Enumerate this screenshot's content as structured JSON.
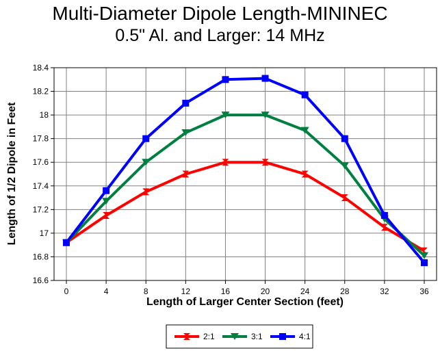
{
  "chart_data": {
    "type": "line",
    "title": "Multi-Diameter Dipole Length-MININEC",
    "subtitle": "0.5\" Al. and Larger:  14 MHz",
    "xlabel": "Length of Larger Center Section (feet)",
    "ylabel": "Length of 1/2 Dipole in Feet",
    "x": [
      0,
      4,
      8,
      12,
      16,
      20,
      24,
      28,
      32,
      36
    ],
    "xticks": [
      "0",
      "4",
      "8",
      "12",
      "16",
      "20",
      "24",
      "28",
      "32",
      "36"
    ],
    "ylim": [
      16.6,
      18.4
    ],
    "yticks": [
      "16.6",
      "16.8",
      "17",
      "17.2",
      "17.4",
      "17.6",
      "17.8",
      "18",
      "18.2",
      "18.4"
    ],
    "grid": true,
    "legend_position": "bottom-center",
    "series": [
      {
        "name": "2:1",
        "color": "#ff0000",
        "marker": "hourglass",
        "values": [
          16.92,
          17.15,
          17.35,
          17.5,
          17.6,
          17.6,
          17.5,
          17.3,
          17.05,
          16.85
        ]
      },
      {
        "name": "3:1",
        "color": "#008040",
        "marker": "triangle-down",
        "values": [
          16.92,
          17.27,
          17.6,
          17.85,
          18.0,
          18.0,
          17.87,
          17.57,
          17.12,
          16.81
        ]
      },
      {
        "name": "4:1",
        "color": "#0000ff",
        "marker": "square",
        "values": [
          16.92,
          17.36,
          17.8,
          18.1,
          18.3,
          18.31,
          18.17,
          17.8,
          17.15,
          16.75
        ]
      }
    ]
  }
}
